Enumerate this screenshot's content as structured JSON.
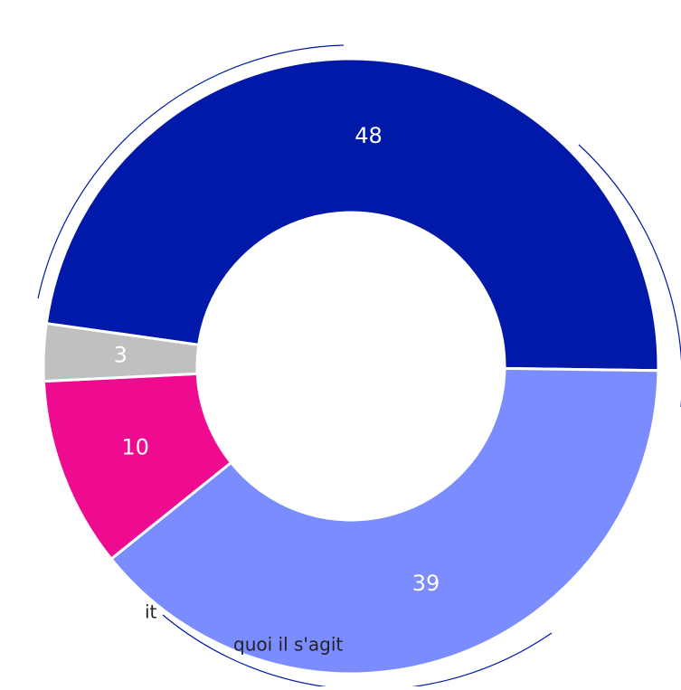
{
  "chart_data": {
    "type": "donut",
    "categories": [
      null,
      null,
      null,
      null
    ],
    "values": [
      48,
      39,
      10,
      3
    ],
    "colors": [
      "#0019a8",
      "#7b8cff",
      "#ee0b8f",
      "#c0c0c0"
    ],
    "annotations": [
      "it",
      "quoi il s'agit"
    ]
  }
}
